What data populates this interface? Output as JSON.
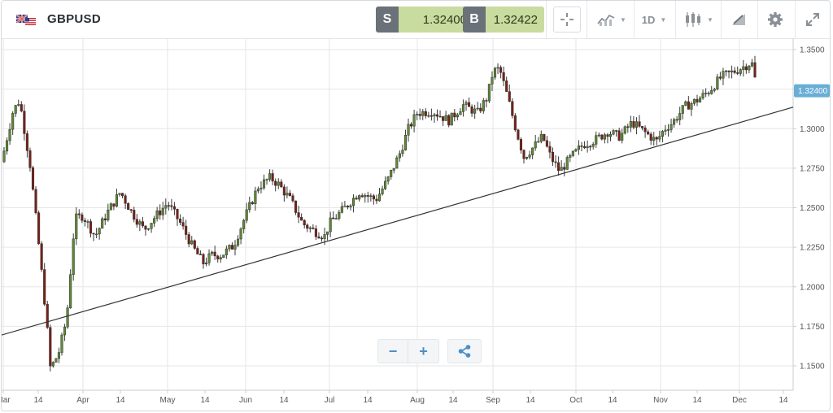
{
  "symbol": "GBPUSD",
  "flag_icon": "uk-us-flag-icon",
  "sell": {
    "tag": "S",
    "price": "1.32400"
  },
  "buy": {
    "tag": "B",
    "price": "1.32422"
  },
  "toolbar": {
    "timeframe": "1D",
    "icons": [
      "crosshair-icon",
      "indicators-icon",
      "candlestick-type-icon",
      "drawing-tools-icon",
      "gear-icon",
      "expand-icon"
    ]
  },
  "colors": {
    "up": "#5f8a35",
    "down": "#7a2018",
    "label_bg": "#6aaed6",
    "grid": "#e6e6e6",
    "trendline": "#333333"
  },
  "zoom": {
    "minus": "−",
    "plus": "+"
  },
  "chart_data": {
    "type": "candlestick",
    "instrument": "GBPUSD",
    "timeframe": "1D",
    "x_tick_labels": [
      "Mar",
      "14",
      "Apr",
      "14",
      "May",
      "14",
      "Jun",
      "14",
      "Jul",
      "14",
      "Aug",
      "14",
      "Sep",
      "14",
      "Oct",
      "14",
      "Nov",
      "14",
      "Dec",
      "14"
    ],
    "y_tick_labels": [
      "1.3500",
      "1.3250",
      "1.3000",
      "1.2750",
      "1.2500",
      "1.2250",
      "1.2000",
      "1.1750",
      "1.1500"
    ],
    "ylim": [
      1.138,
      1.357
    ],
    "last_price_label": "1.32400",
    "last_price": 1.324,
    "trendline": {
      "start": {
        "date": "Mar 1",
        "price": 1.1695
      },
      "end": {
        "date": "Dec 17",
        "price": 1.3136
      }
    },
    "grid": true,
    "axis_position": "right"
  }
}
